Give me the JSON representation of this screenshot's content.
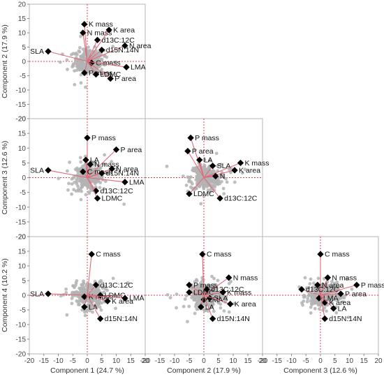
{
  "chart_data": {
    "type": "scatter",
    "subtype": "scatterplot-matrix-biplot",
    "axis_titles": {
      "1": "Component 1  (24.7 %)",
      "2": "Component 2  (17.9 %)",
      "3": "Component 3  (12.6 %)",
      "4": "Component 4  (10.2 %)"
    },
    "range": [
      -20,
      20
    ],
    "ticks": [
      -20,
      -15,
      -10,
      -5,
      0,
      5,
      10,
      15,
      20
    ],
    "tick_labels": [
      "-20",
      "-15",
      "-10",
      "-5",
      "0",
      "5",
      "10",
      "15",
      "20"
    ],
    "reference_lines": "dashed red at 0",
    "colors": {
      "points": "#b3b3b3",
      "vector": "#e06a7a",
      "marker": "#000000",
      "reference": "#e04050"
    },
    "panels": [
      {
        "x": "1",
        "y": "2",
        "vectors": [
          {
            "label": "K mass",
            "x": -1,
            "y": 13
          },
          {
            "label": "N mass",
            "x": -1.5,
            "y": 10
          },
          {
            "label": "K area",
            "x": 7.5,
            "y": 11
          },
          {
            "label": "N area",
            "x": 13,
            "y": 5.5
          },
          {
            "label": "d13C:12C",
            "x": 3.5,
            "y": 7.5
          },
          {
            "label": "d15N:14N",
            "x": 5,
            "y": 4
          },
          {
            "label": "SLA",
            "x": -13.5,
            "y": 3.5
          },
          {
            "label": "C mass",
            "x": 1.5,
            "y": -0.5
          },
          {
            "label": "LMA",
            "x": 13.5,
            "y": -2
          },
          {
            "label": "P mass",
            "x": -1,
            "y": -4
          },
          {
            "label": "LDMC",
            "x": 3,
            "y": -4.5
          },
          {
            "label": "P area",
            "x": 8,
            "y": -6
          }
        ]
      },
      {
        "x": "1",
        "y": "3",
        "vectors": [
          {
            "label": "P mass",
            "x": 0,
            "y": 13.5
          },
          {
            "label": "P area",
            "x": 10,
            "y": 9.5
          },
          {
            "label": "LA",
            "x": -0.5,
            "y": 6
          },
          {
            "label": "N mass",
            "x": 1,
            "y": 4.5
          },
          {
            "label": "SLA",
            "x": -13.5,
            "y": 2.5
          },
          {
            "label": "C mass",
            "x": -1.5,
            "y": 2
          },
          {
            "label": "N area",
            "x": 8.5,
            "y": 3
          },
          {
            "label": "d15N:14N",
            "x": 5,
            "y": 1.5
          },
          {
            "label": "LMA",
            "x": 13,
            "y": -1.5
          },
          {
            "label": "d13C:12C",
            "x": 3,
            "y": -4.5
          },
          {
            "label": "LDMC",
            "x": 3.5,
            "y": -7
          }
        ]
      },
      {
        "x": "2",
        "y": "3",
        "vectors": [
          {
            "label": "P mass",
            "x": -4.5,
            "y": 13.5
          },
          {
            "label": "P area",
            "x": -5.5,
            "y": 9
          },
          {
            "label": "LA",
            "x": -1.5,
            "y": 6
          },
          {
            "label": "SLA",
            "x": 3,
            "y": 4
          },
          {
            "label": "K mass",
            "x": 12.5,
            "y": 5
          },
          {
            "label": "K area",
            "x": 10.5,
            "y": 2.5
          },
          {
            "label": "N",
            "x": 4,
            "y": 0.5
          },
          {
            "label": "LDMC",
            "x": -5,
            "y": -5.5
          },
          {
            "label": "d13C:12C",
            "x": 5.5,
            "y": -7
          }
        ]
      },
      {
        "x": "1",
        "y": "4",
        "vectors": [
          {
            "label": "C mass",
            "x": 1.5,
            "y": 14
          },
          {
            "label": "SLA",
            "x": -13.5,
            "y": 0.5
          },
          {
            "label": "K mass",
            "x": -1,
            "y": -0.5
          },
          {
            "label": "d13C:12C",
            "x": 3,
            "y": 3.5
          },
          {
            "label": "LDMC",
            "x": 4.5,
            "y": 0
          },
          {
            "label": "LMA",
            "x": 13,
            "y": -1
          },
          {
            "label": "K area",
            "x": 7,
            "y": -2
          },
          {
            "label": "LA",
            "x": -1,
            "y": -4
          },
          {
            "label": "d15N:14N",
            "x": 4.5,
            "y": -8
          }
        ]
      },
      {
        "x": "2",
        "y": "4",
        "vectors": [
          {
            "label": "C mass",
            "x": -0.5,
            "y": 14
          },
          {
            "label": "N mass",
            "x": 8.5,
            "y": 6
          },
          {
            "label": "P mass",
            "x": -5,
            "y": 3.5
          },
          {
            "label": "LDMC",
            "x": -5,
            "y": 1
          },
          {
            "label": "d13C:12C",
            "x": 1,
            "y": 2
          },
          {
            "label": "K mass",
            "x": 6.5,
            "y": 1
          },
          {
            "label": "SLA",
            "x": 2,
            "y": -1
          },
          {
            "label": "LMA",
            "x": 0,
            "y": -1.5
          },
          {
            "label": "K area",
            "x": 9,
            "y": -3
          },
          {
            "label": "LA",
            "x": -1,
            "y": -4
          },
          {
            "label": "d15N:14N",
            "x": 3,
            "y": -8
          }
        ]
      },
      {
        "x": "3",
        "y": "4",
        "vectors": [
          {
            "label": "C mass",
            "x": 0,
            "y": 14
          },
          {
            "label": "N mass",
            "x": 2.5,
            "y": 6
          },
          {
            "label": "N area",
            "x": -1,
            "y": 3.5
          },
          {
            "label": "d13C:12C",
            "x": -6.5,
            "y": 2
          },
          {
            "label": "P mass",
            "x": 12.5,
            "y": 3.5
          },
          {
            "label": "P area",
            "x": 7,
            "y": 0.5
          },
          {
            "label": "LMA",
            "x": -0.5,
            "y": -1
          },
          {
            "label": "K area",
            "x": 1.5,
            "y": -2.5
          },
          {
            "label": "LA",
            "x": 4.5,
            "y": -4.5
          },
          {
            "label": "d15N:14N",
            "x": 1.5,
            "y": -8
          }
        ]
      }
    ]
  }
}
